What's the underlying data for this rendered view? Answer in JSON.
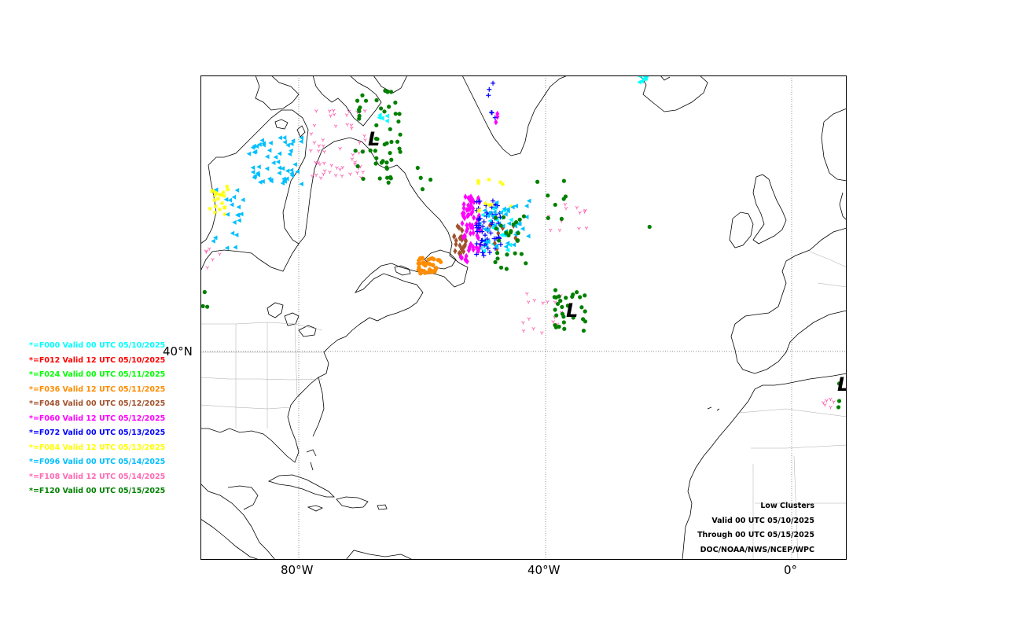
{
  "legend": {
    "items": [
      {
        "label": "*=F000 Valid 00 UTC 05/10/2025",
        "color": "#00ffff"
      },
      {
        "label": "*=F012 Valid 12 UTC 05/10/2025",
        "color": "#ff0000"
      },
      {
        "label": "*=F024 Valid 00 UTC 05/11/2025",
        "color": "#00ff00"
      },
      {
        "label": "*=F036 Valid 12 UTC 05/11/2025",
        "color": "#ff8c00"
      },
      {
        "label": "*=F048 Valid 00 UTC 05/12/2025",
        "color": "#a0522d"
      },
      {
        "label": "*=F060 Valid 12 UTC 05/12/2025",
        "color": "#ff00ff"
      },
      {
        "label": "*=F072 Valid 00 UTC 05/13/2025",
        "color": "#0000ff"
      },
      {
        "label": "*=F084 Valid 12 UTC 05/13/2025",
        "color": "#ffff00"
      },
      {
        "label": "*=F096 Valid 00 UTC 05/14/2025",
        "color": "#00bfff"
      },
      {
        "label": "*=F108 Valid 12 UTC 05/14/2025",
        "color": "#ff69b4"
      },
      {
        "label": "*=F120 Valid 00 UTC 05/15/2025",
        "color": "#008000"
      }
    ]
  },
  "info": {
    "title": "Low Clusters",
    "valid": "Valid 00 UTC 05/10/2025",
    "through": "Through 00 UTC 05/15/2025",
    "source": "DOC/NOAA/NWS/NCEP/WPC"
  },
  "axes": {
    "lon_labels": [
      "80°W",
      "40°W",
      "0°"
    ],
    "lat_labels": [
      "40°N"
    ]
  },
  "lows": [
    {
      "label": "L",
      "name": "low-labrador"
    },
    {
      "label": "L",
      "name": "low-mid-atlantic"
    },
    {
      "label": "L",
      "name": "low-iberia"
    }
  ]
}
